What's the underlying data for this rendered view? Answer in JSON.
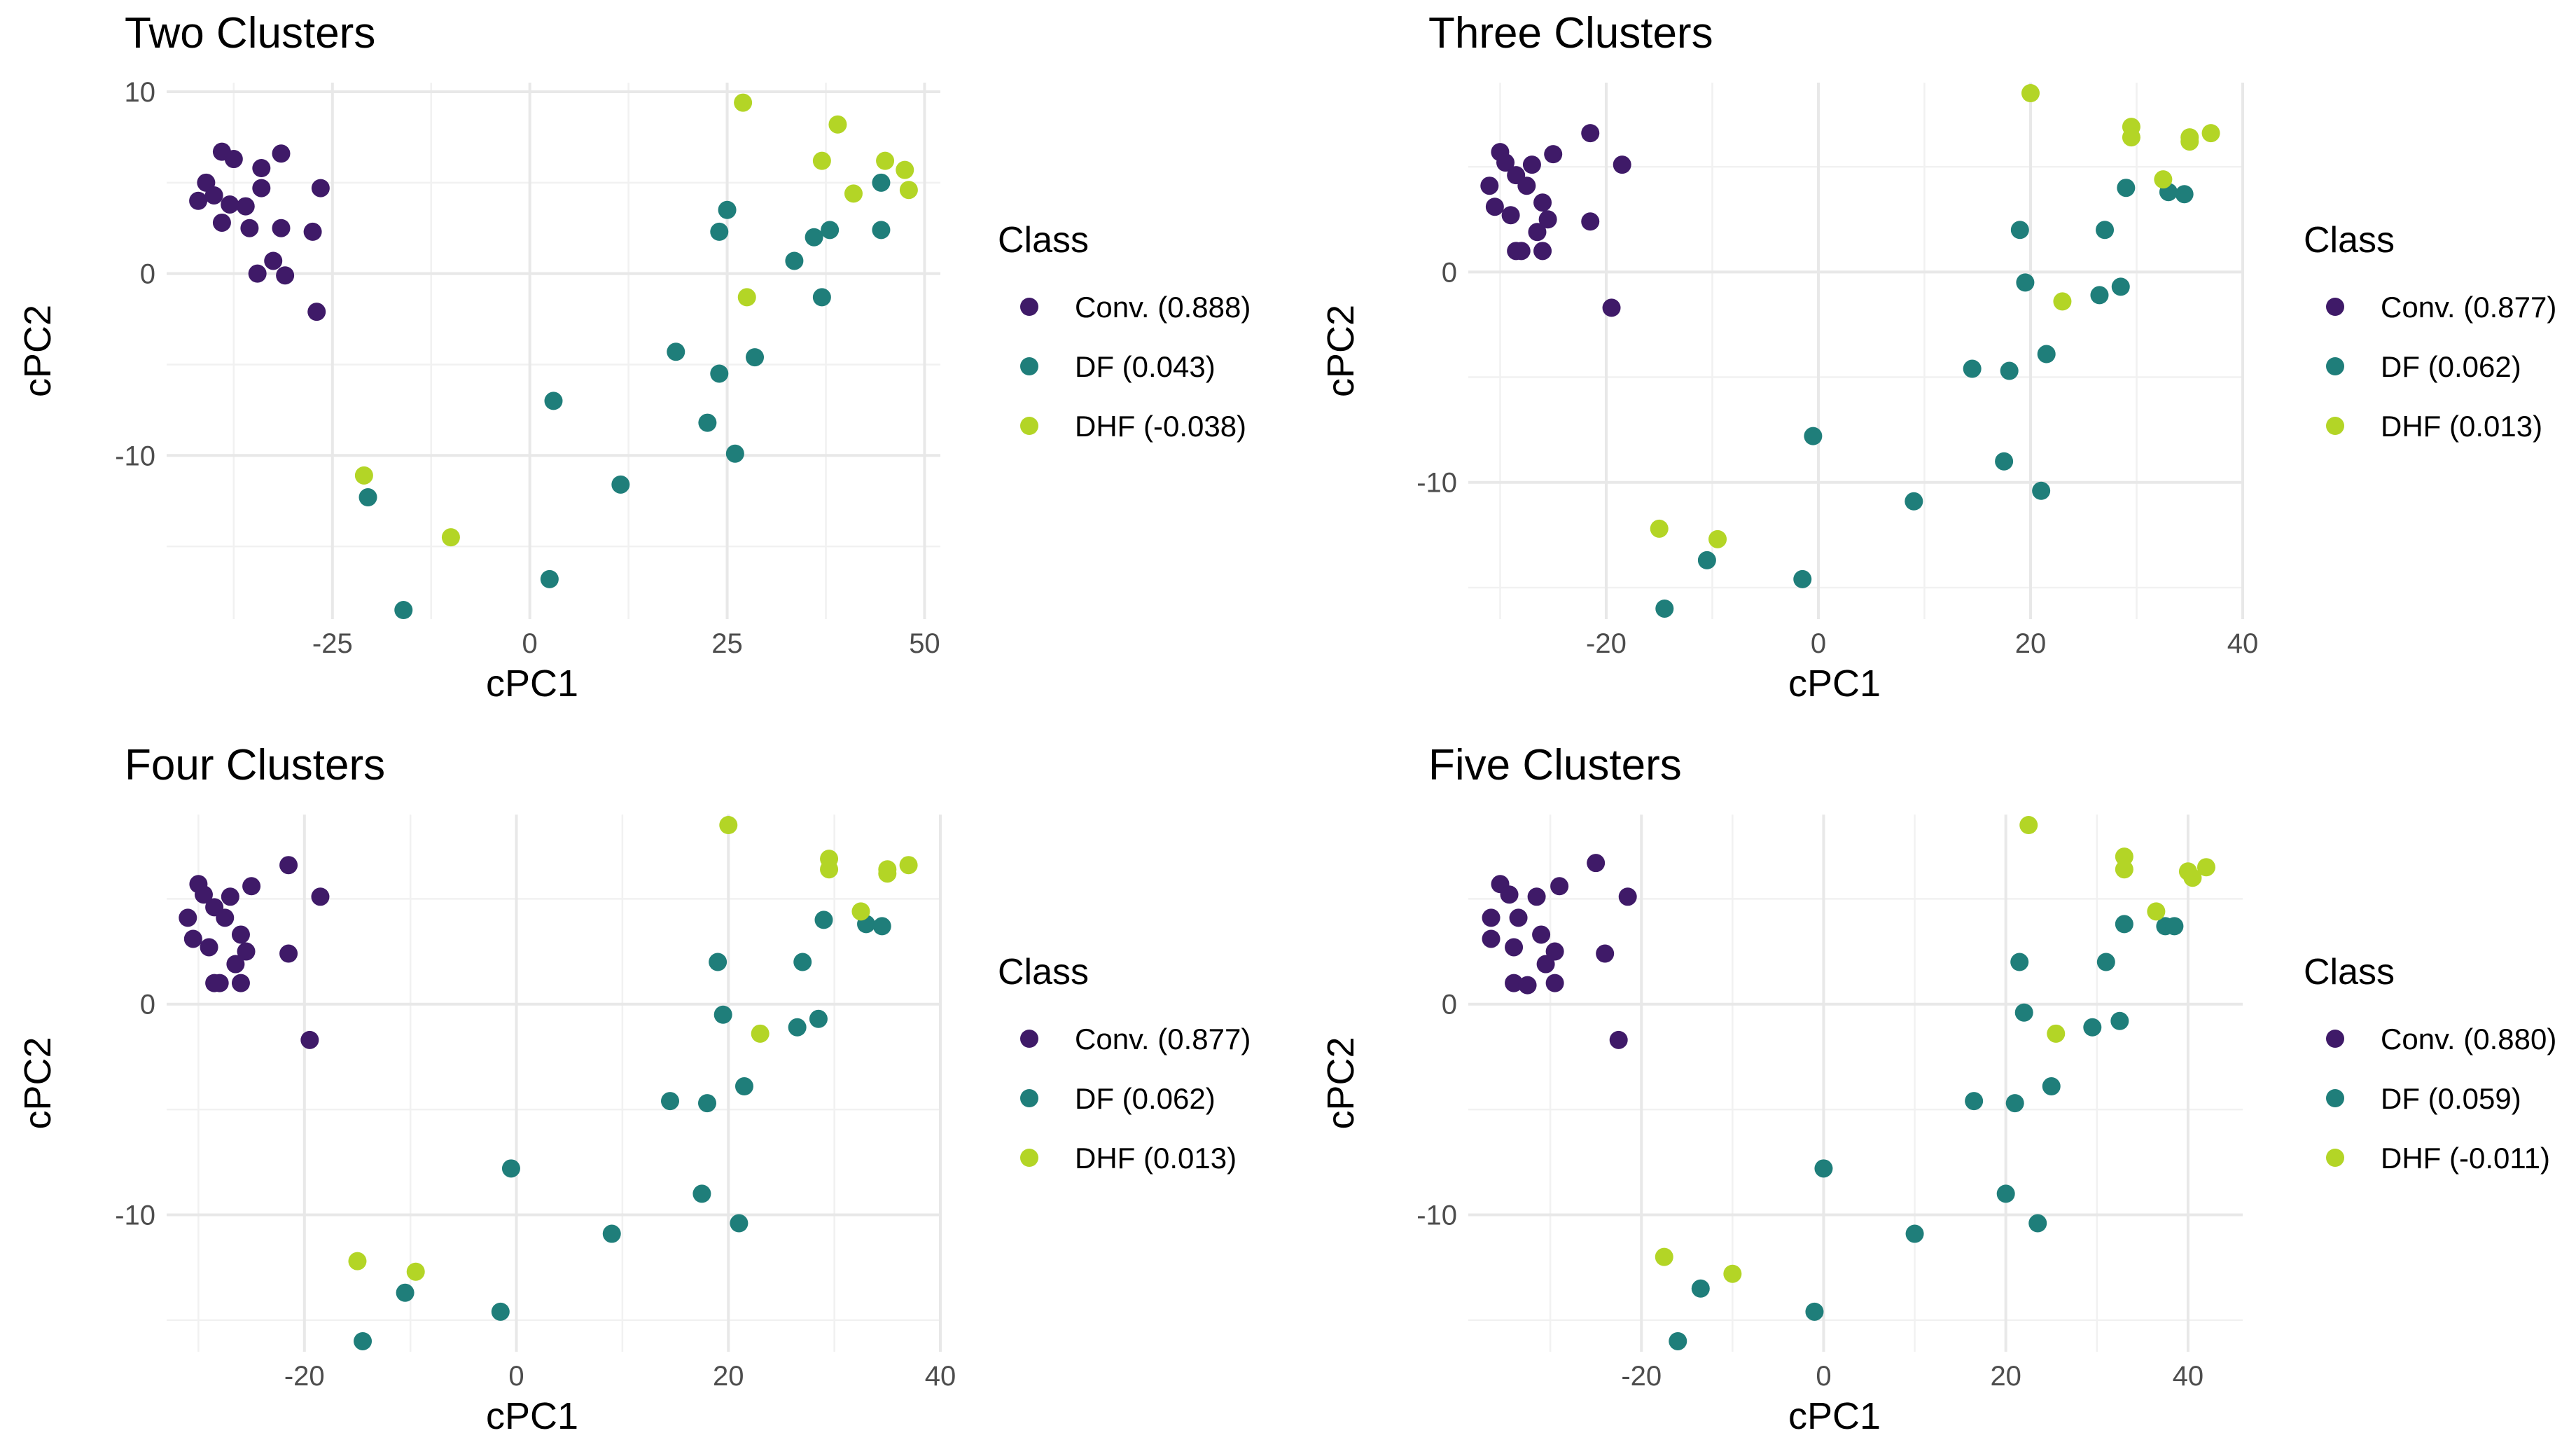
{
  "colors": {
    "Conv.": "#3f1a68",
    "DF": "#1f7e7a",
    "DHF": "#b3d526"
  },
  "chart_data": [
    {
      "type": "scatter",
      "title": "Two Clusters",
      "xlabel": "cPC1",
      "ylabel": "cPC2",
      "xlim": [
        -46,
        52
      ],
      "ylim": [
        -19,
        10.5
      ],
      "xticks": [
        -25,
        0,
        25,
        50
      ],
      "yticks": [
        -10,
        0,
        10
      ],
      "legend": {
        "title": "Class",
        "position": "right",
        "labels": [
          "Conv. (0.888)",
          "DF (0.043)",
          "DHF (-0.038)"
        ]
      },
      "series": [
        {
          "name": "Conv.",
          "points": [
            [
              -42,
              4
            ],
            [
              -41,
              5
            ],
            [
              -40,
              4.3
            ],
            [
              -39,
              2.8
            ],
            [
              -39,
              6.7
            ],
            [
              -38,
              3.8
            ],
            [
              -37.5,
              6.3
            ],
            [
              -36,
              3.7
            ],
            [
              -35.5,
              2.5
            ],
            [
              -34.5,
              0
            ],
            [
              -34,
              5.8
            ],
            [
              -34,
              4.7
            ],
            [
              -32.5,
              0.7
            ],
            [
              -31.5,
              2.5
            ],
            [
              -31.5,
              6.6
            ],
            [
              -31,
              -0.1
            ],
            [
              -27.5,
              2.3
            ],
            [
              -26.5,
              4.7
            ],
            [
              -27,
              -2.1
            ]
          ]
        },
        {
          "name": "DF",
          "points": [
            [
              -20.5,
              -12.3
            ],
            [
              -16,
              -18.5
            ],
            [
              3,
              -7
            ],
            [
              2.5,
              -16.8
            ],
            [
              11.5,
              -11.6
            ],
            [
              18.5,
              -4.3
            ],
            [
              22.5,
              -8.2
            ],
            [
              24,
              -5.5
            ],
            [
              24,
              2.3
            ],
            [
              25,
              3.5
            ],
            [
              26,
              -9.9
            ],
            [
              28.5,
              -4.6
            ],
            [
              33.5,
              0.7
            ],
            [
              36,
              2
            ],
            [
              37,
              -1.3
            ],
            [
              38,
              2.4
            ],
            [
              44.5,
              5
            ],
            [
              44.5,
              2.4
            ]
          ]
        },
        {
          "name": "DHF",
          "points": [
            [
              -21,
              -11.1
            ],
            [
              -10,
              -14.5
            ],
            [
              27,
              9.4
            ],
            [
              27.5,
              -1.3
            ],
            [
              37,
              6.2
            ],
            [
              39,
              8.2
            ],
            [
              41,
              4.4
            ],
            [
              45,
              6.2
            ],
            [
              47.5,
              5.7
            ],
            [
              48,
              4.6
            ]
          ]
        }
      ]
    },
    {
      "type": "scatter",
      "title": "Three Clusters",
      "xlabel": "cPC1",
      "ylabel": "cPC2",
      "xlim": [
        -33,
        40
      ],
      "ylim": [
        -16.5,
        9
      ],
      "xticks": [
        -20,
        0,
        20,
        40
      ],
      "yticks": [
        -10,
        0
      ],
      "legend": {
        "title": "Class",
        "position": "right",
        "labels": [
          "Conv. (0.877)",
          "DF (0.062)",
          "DHF (0.013)"
        ]
      },
      "series": [
        {
          "name": "Conv.",
          "points": [
            [
              -31,
              4.1
            ],
            [
              -30.5,
              3.1
            ],
            [
              -30,
              5.7
            ],
            [
              -29.5,
              5.2
            ],
            [
              -29,
              2.7
            ],
            [
              -28.5,
              4.6
            ],
            [
              -28.5,
              1
            ],
            [
              -28,
              1
            ],
            [
              -27.5,
              4.1
            ],
            [
              -27,
              5.1
            ],
            [
              -26.5,
              1.9
            ],
            [
              -26,
              1
            ],
            [
              -26,
              3.3
            ],
            [
              -25.5,
              2.5
            ],
            [
              -25,
              5.6
            ],
            [
              -21.5,
              6.6
            ],
            [
              -21.5,
              2.4
            ],
            [
              -19.5,
              -1.7
            ],
            [
              -18.5,
              5.1
            ]
          ]
        },
        {
          "name": "DF",
          "points": [
            [
              -14.5,
              -16
            ],
            [
              -10.5,
              -13.7
            ],
            [
              -1.5,
              -14.6
            ],
            [
              -0.5,
              -7.8
            ],
            [
              9,
              -10.9
            ],
            [
              14.5,
              -4.6
            ],
            [
              17.5,
              -9
            ],
            [
              18,
              -4.7
            ],
            [
              19,
              2
            ],
            [
              19.5,
              -0.5
            ],
            [
              21,
              -10.4
            ],
            [
              21.5,
              -3.9
            ],
            [
              26.5,
              -1.1
            ],
            [
              27,
              2
            ],
            [
              28.5,
              -0.7
            ],
            [
              29,
              4
            ],
            [
              33,
              3.8
            ],
            [
              34.5,
              3.7
            ]
          ]
        },
        {
          "name": "DHF",
          "points": [
            [
              -15,
              -12.2
            ],
            [
              -9.5,
              -12.7
            ],
            [
              20,
              8.5
            ],
            [
              23,
              -1.4
            ],
            [
              29.5,
              6.9
            ],
            [
              29.5,
              6.4
            ],
            [
              32.5,
              4.4
            ],
            [
              35,
              6.2
            ],
            [
              35,
              6.4
            ],
            [
              37,
              6.6
            ]
          ]
        }
      ]
    },
    {
      "type": "scatter",
      "title": "Four Clusters",
      "xlabel": "cPC1",
      "ylabel": "cPC2",
      "xlim": [
        -33,
        40
      ],
      "ylim": [
        -16.5,
        9
      ],
      "xticks": [
        -20,
        0,
        20,
        40
      ],
      "yticks": [
        -10,
        0
      ],
      "legend": {
        "title": "Class",
        "position": "right",
        "labels": [
          "Conv. (0.877)",
          "DF (0.062)",
          "DHF (0.013)"
        ]
      },
      "series": [
        {
          "name": "Conv.",
          "points": [
            [
              -31,
              4.1
            ],
            [
              -30.5,
              3.1
            ],
            [
              -30,
              5.7
            ],
            [
              -29.5,
              5.2
            ],
            [
              -29,
              2.7
            ],
            [
              -28.5,
              4.6
            ],
            [
              -28.5,
              1
            ],
            [
              -28,
              1
            ],
            [
              -27.5,
              4.1
            ],
            [
              -27,
              5.1
            ],
            [
              -26.5,
              1.9
            ],
            [
              -26,
              1
            ],
            [
              -26,
              3.3
            ],
            [
              -25.5,
              2.5
            ],
            [
              -25,
              5.6
            ],
            [
              -21.5,
              6.6
            ],
            [
              -21.5,
              2.4
            ],
            [
              -19.5,
              -1.7
            ],
            [
              -18.5,
              5.1
            ]
          ]
        },
        {
          "name": "DF",
          "points": [
            [
              -14.5,
              -16
            ],
            [
              -10.5,
              -13.7
            ],
            [
              -1.5,
              -14.6
            ],
            [
              -0.5,
              -7.8
            ],
            [
              9,
              -10.9
            ],
            [
              14.5,
              -4.6
            ],
            [
              17.5,
              -9
            ],
            [
              18,
              -4.7
            ],
            [
              19,
              2
            ],
            [
              19.5,
              -0.5
            ],
            [
              21,
              -10.4
            ],
            [
              21.5,
              -3.9
            ],
            [
              26.5,
              -1.1
            ],
            [
              27,
              2
            ],
            [
              28.5,
              -0.7
            ],
            [
              29,
              4
            ],
            [
              33,
              3.8
            ],
            [
              34.5,
              3.7
            ]
          ]
        },
        {
          "name": "DHF",
          "points": [
            [
              -15,
              -12.2
            ],
            [
              -9.5,
              -12.7
            ],
            [
              20,
              8.5
            ],
            [
              23,
              -1.4
            ],
            [
              29.5,
              6.9
            ],
            [
              29.5,
              6.4
            ],
            [
              32.5,
              4.4
            ],
            [
              35,
              6.2
            ],
            [
              35,
              6.4
            ],
            [
              37,
              6.6
            ]
          ]
        }
      ]
    },
    {
      "type": "scatter",
      "title": "Five Clusters",
      "xlabel": "cPC1",
      "ylabel": "cPC2",
      "xlim": [
        -39,
        46
      ],
      "ylim": [
        -16.5,
        9
      ],
      "xticks": [
        -20,
        0,
        20,
        40
      ],
      "yticks": [
        -10,
        0
      ],
      "legend": {
        "title": "Class",
        "position": "right",
        "labels": [
          "Conv. (0.880)",
          "DF (0.059)",
          "DHF (-0.011)"
        ]
      },
      "series": [
        {
          "name": "Conv.",
          "points": [
            [
              -36.5,
              4.1
            ],
            [
              -36.5,
              3.1
            ],
            [
              -35.5,
              5.7
            ],
            [
              -34.5,
              5.2
            ],
            [
              -34,
              2.7
            ],
            [
              -34,
              1
            ],
            [
              -33.5,
              4.1
            ],
            [
              -32.5,
              0.9
            ],
            [
              -31.5,
              5.1
            ],
            [
              -31,
              3.3
            ],
            [
              -30.5,
              1.9
            ],
            [
              -29.5,
              1
            ],
            [
              -29.5,
              2.5
            ],
            [
              -29,
              5.6
            ],
            [
              -25,
              6.7
            ],
            [
              -24,
              2.4
            ],
            [
              -22.5,
              -1.7
            ],
            [
              -21.5,
              5.1
            ]
          ]
        },
        {
          "name": "DF",
          "points": [
            [
              -16,
              -16
            ],
            [
              -13.5,
              -13.5
            ],
            [
              -1,
              -14.6
            ],
            [
              0,
              -7.8
            ],
            [
              10,
              -10.9
            ],
            [
              16.5,
              -4.6
            ],
            [
              20,
              -9
            ],
            [
              21,
              -4.7
            ],
            [
              21.5,
              2
            ],
            [
              22,
              -0.4
            ],
            [
              23.5,
              -10.4
            ],
            [
              25,
              -3.9
            ],
            [
              29.5,
              -1.1
            ],
            [
              31,
              2
            ],
            [
              32.5,
              -0.8
            ],
            [
              33,
              3.8
            ],
            [
              37.5,
              3.7
            ],
            [
              38.5,
              3.7
            ]
          ]
        },
        {
          "name": "DHF",
          "points": [
            [
              -17.5,
              -12
            ],
            [
              -10,
              -12.8
            ],
            [
              22.5,
              8.5
            ],
            [
              25.5,
              -1.4
            ],
            [
              33,
              7
            ],
            [
              33,
              6.4
            ],
            [
              36.5,
              4.4
            ],
            [
              40,
              6.3
            ],
            [
              40.5,
              6
            ],
            [
              42,
              6.5
            ]
          ]
        }
      ]
    }
  ]
}
